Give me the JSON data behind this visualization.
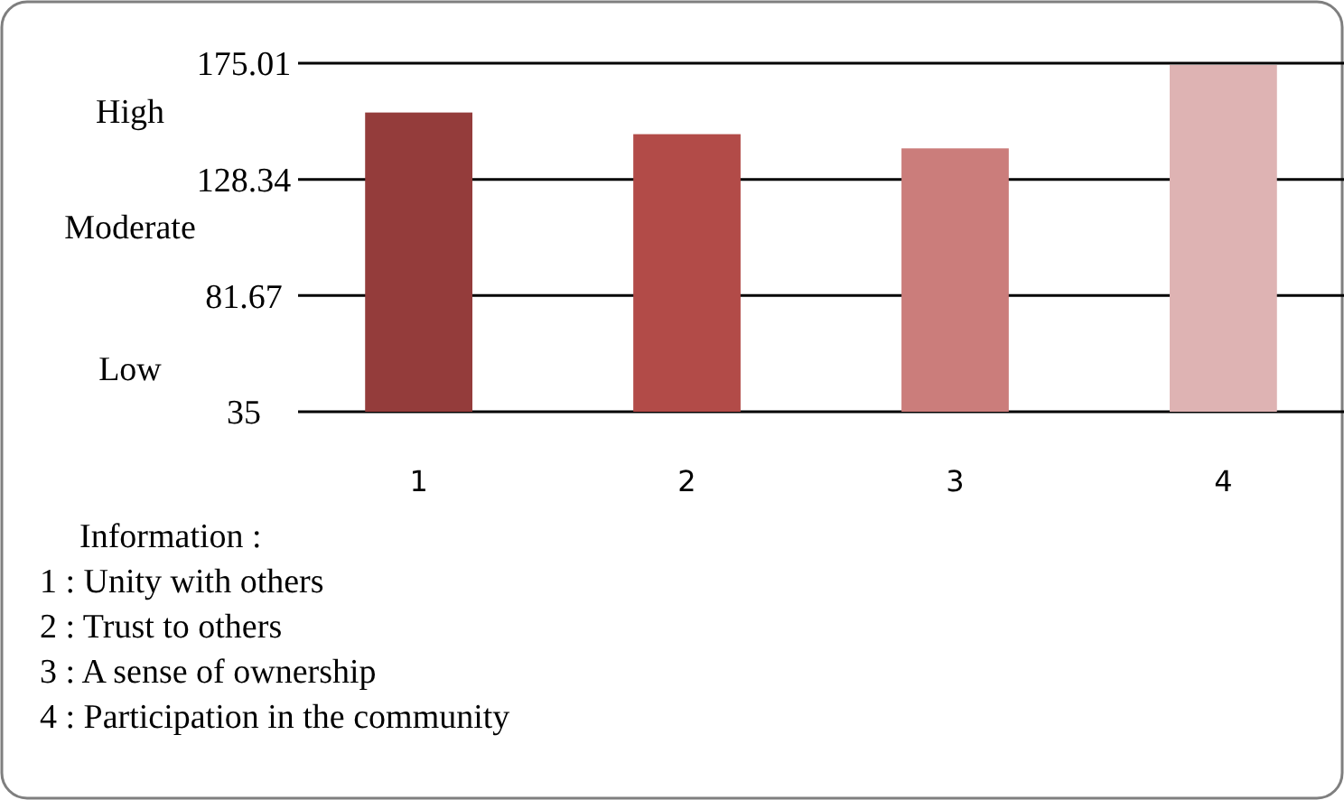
{
  "chart_data": {
    "type": "bar",
    "categories": [
      "1",
      "2",
      "3",
      "4"
    ],
    "values": [
      155.2,
      146.5,
      140.8,
      174.3
    ],
    "colors": [
      "#943c3b",
      "#b24b48",
      "#cb7d7b",
      "#deb3b3"
    ],
    "ylim": [
      35,
      175.01
    ],
    "yticks": [
      35,
      81.67,
      128.34,
      175.01
    ],
    "grid": "y",
    "annotations": [
      "High",
      "Moderate",
      "Low",
      "Information :",
      "1 : Unity with others",
      "2 : Trust to others",
      "3 : A sense of ownership",
      "4 : Participation in the community"
    ]
  }
}
